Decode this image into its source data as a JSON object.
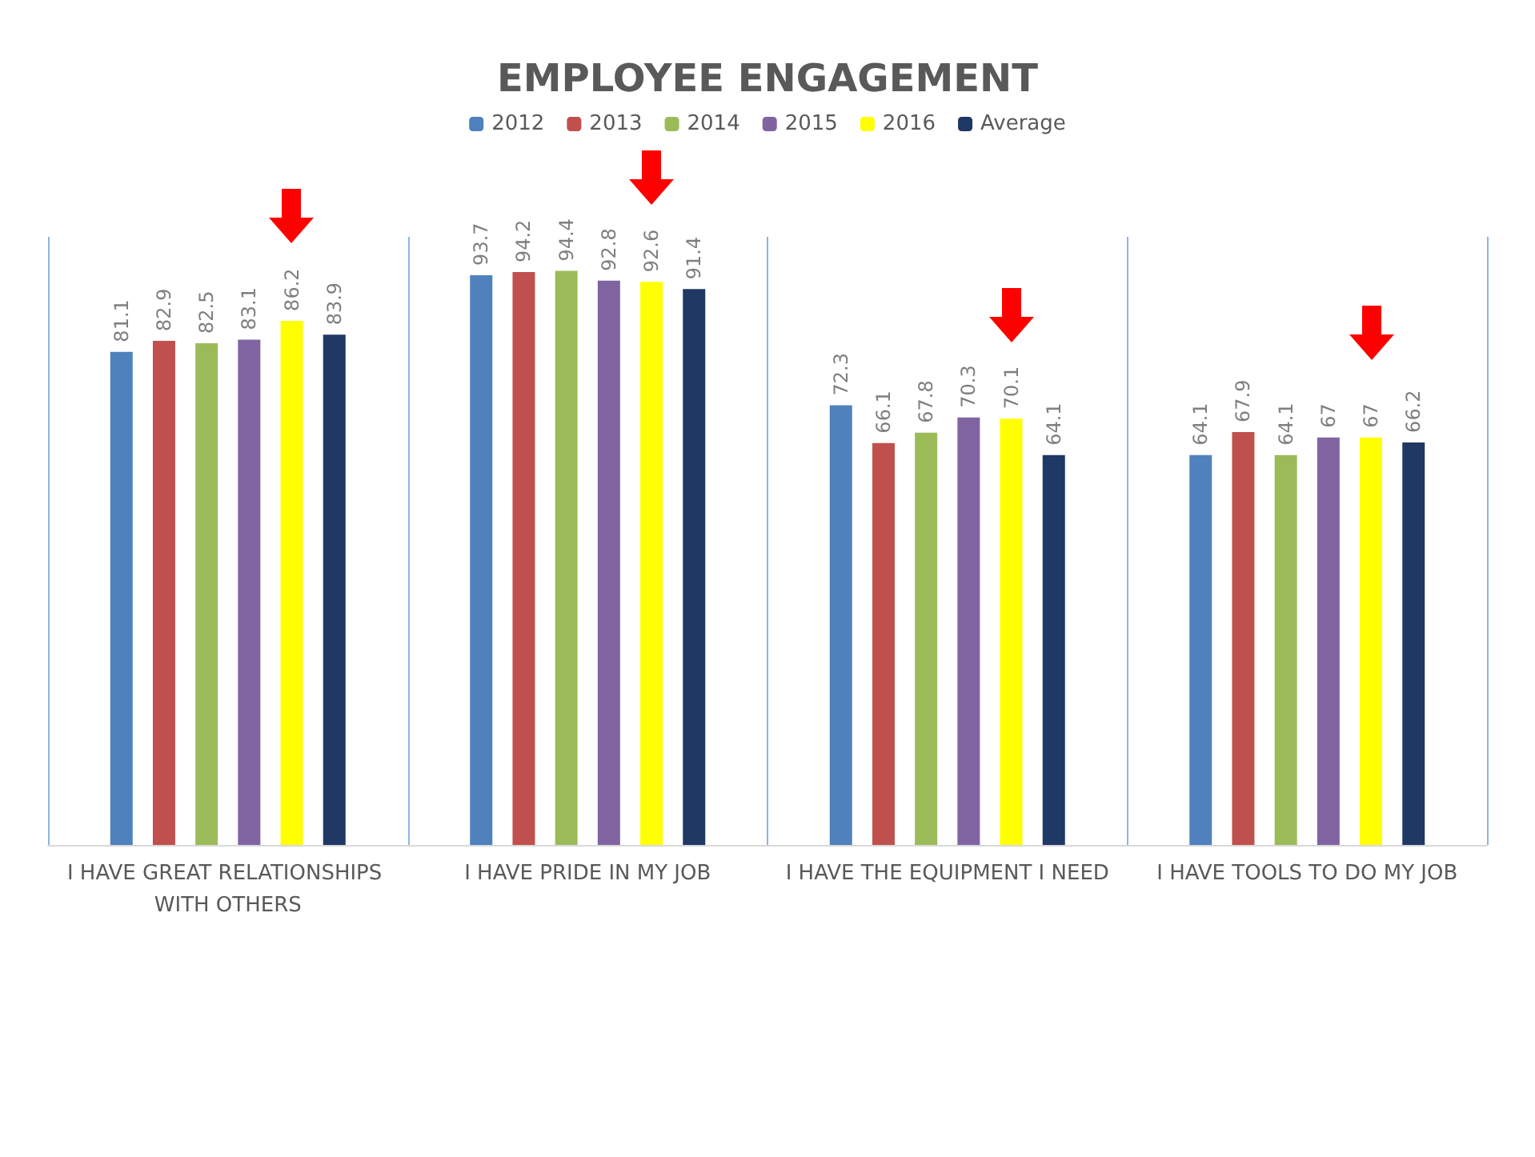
{
  "chart_data": {
    "type": "bar",
    "title": "EMPLOYEE ENGAGEMENT",
    "categories": [
      "I HAVE GREAT RELATIONSHIPS WITH OTHERS",
      "I HAVE PRIDE IN MY JOB",
      "I HAVE THE EQUIPMENT I NEED",
      "I HAVE TOOLS TO DO MY JOB"
    ],
    "series": [
      {
        "name": "2012",
        "color": "#4f81bd",
        "values": [
          81.1,
          93.7,
          72.3,
          64.1
        ]
      },
      {
        "name": "2013",
        "color": "#c0504d",
        "values": [
          82.9,
          94.2,
          66.1,
          67.9
        ]
      },
      {
        "name": "2014",
        "color": "#9bbb59",
        "values": [
          82.5,
          94.4,
          67.8,
          64.1
        ]
      },
      {
        "name": "2015",
        "color": "#8064a2",
        "values": [
          83.1,
          92.8,
          70.3,
          67
        ]
      },
      {
        "name": "2016",
        "color": "#ffff00",
        "values": [
          86.2,
          92.6,
          70.1,
          67
        ]
      },
      {
        "name": "Average",
        "color": "#1f3864",
        "values": [
          83.9,
          91.4,
          64.1,
          66.2
        ]
      }
    ],
    "data_labels": true,
    "legend": "top",
    "grid": "x"
  }
}
